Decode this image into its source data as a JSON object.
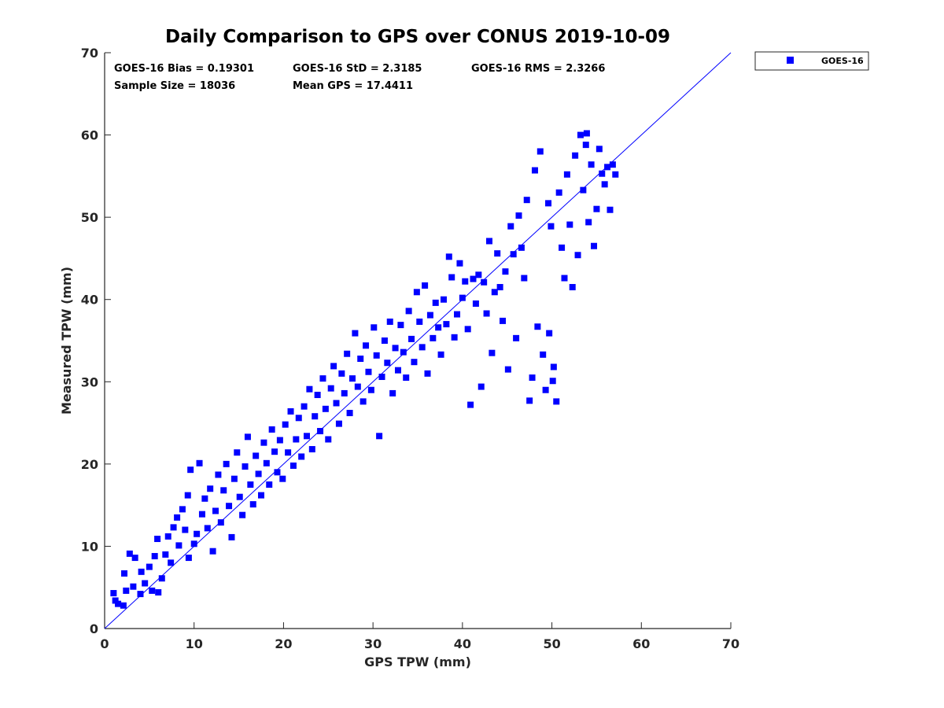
{
  "chart_data": {
    "type": "scatter",
    "title": "Daily Comparison to GPS over CONUS 2019-10-09",
    "xlabel": "GPS TPW (mm)",
    "ylabel": "Measured TPW (mm)",
    "xlim": [
      0,
      70
    ],
    "ylim": [
      0,
      70
    ],
    "xticks": [
      0,
      10,
      20,
      30,
      40,
      50,
      60,
      70
    ],
    "yticks": [
      0,
      10,
      20,
      30,
      40,
      50,
      60,
      70
    ],
    "grid": false,
    "reference_line": {
      "type": "one-to-one",
      "from": [
        0,
        0
      ],
      "to": [
        70,
        70
      ]
    },
    "legend": {
      "position": "outside-top-right",
      "entries": [
        "GOES-16"
      ]
    },
    "stats": {
      "bias": "GOES-16 Bias = 0.19301",
      "std": "GOES-16 StD = 2.3185",
      "rms": "GOES-16 RMS = 2.3266",
      "sample": "Sample Size = 18036",
      "mean": "Mean GPS = 17.4411"
    },
    "series": [
      {
        "name": "GOES-16",
        "color": "#0000ff",
        "marker": "square",
        "points": [
          [
            1.0,
            4.3
          ],
          [
            1.2,
            3.4
          ],
          [
            1.5,
            3.0
          ],
          [
            2.1,
            2.8
          ],
          [
            2.4,
            4.6
          ],
          [
            2.2,
            6.7
          ],
          [
            2.8,
            9.1
          ],
          [
            3.4,
            8.6
          ],
          [
            3.2,
            5.1
          ],
          [
            4.0,
            4.2
          ],
          [
            4.5,
            5.5
          ],
          [
            4.1,
            6.9
          ],
          [
            5.0,
            7.5
          ],
          [
            5.6,
            8.8
          ],
          [
            5.9,
            10.9
          ],
          [
            5.3,
            4.6
          ],
          [
            6.0,
            4.4
          ],
          [
            6.4,
            6.1
          ],
          [
            6.8,
            9.0
          ],
          [
            7.1,
            11.2
          ],
          [
            7.4,
            8.0
          ],
          [
            7.7,
            12.3
          ],
          [
            8.1,
            13.5
          ],
          [
            8.3,
            10.1
          ],
          [
            8.7,
            14.5
          ],
          [
            9.0,
            12.0
          ],
          [
            9.3,
            16.2
          ],
          [
            9.6,
            19.3
          ],
          [
            9.4,
            8.6
          ],
          [
            10.0,
            10.3
          ],
          [
            10.3,
            11.5
          ],
          [
            10.6,
            20.1
          ],
          [
            10.9,
            13.9
          ],
          [
            11.2,
            15.8
          ],
          [
            11.5,
            12.2
          ],
          [
            11.8,
            17.0
          ],
          [
            12.1,
            9.4
          ],
          [
            12.4,
            14.3
          ],
          [
            12.7,
            18.7
          ],
          [
            13.0,
            12.9
          ],
          [
            13.3,
            16.8
          ],
          [
            13.6,
            20.0
          ],
          [
            13.9,
            14.9
          ],
          [
            14.2,
            11.1
          ],
          [
            14.5,
            18.2
          ],
          [
            14.8,
            21.4
          ],
          [
            15.1,
            16.0
          ],
          [
            15.4,
            13.8
          ],
          [
            15.7,
            19.7
          ],
          [
            16.0,
            23.3
          ],
          [
            16.3,
            17.5
          ],
          [
            16.6,
            15.1
          ],
          [
            16.9,
            21.0
          ],
          [
            17.2,
            18.8
          ],
          [
            17.5,
            16.2
          ],
          [
            17.8,
            22.6
          ],
          [
            18.1,
            20.1
          ],
          [
            18.4,
            17.5
          ],
          [
            18.7,
            24.2
          ],
          [
            19.0,
            21.5
          ],
          [
            19.3,
            19.0
          ],
          [
            19.6,
            22.9
          ],
          [
            19.9,
            18.2
          ],
          [
            20.2,
            24.8
          ],
          [
            20.5,
            21.4
          ],
          [
            20.8,
            26.4
          ],
          [
            21.1,
            19.8
          ],
          [
            21.4,
            23.0
          ],
          [
            21.7,
            25.6
          ],
          [
            22.0,
            20.9
          ],
          [
            22.3,
            27.0
          ],
          [
            22.6,
            23.4
          ],
          [
            22.9,
            29.1
          ],
          [
            23.2,
            21.8
          ],
          [
            23.5,
            25.8
          ],
          [
            23.8,
            28.4
          ],
          [
            24.1,
            24.0
          ],
          [
            24.4,
            30.4
          ],
          [
            24.7,
            26.7
          ],
          [
            25.0,
            23.0
          ],
          [
            25.3,
            29.2
          ],
          [
            25.6,
            31.9
          ],
          [
            25.9,
            27.4
          ],
          [
            26.2,
            24.9
          ],
          [
            26.5,
            31.0
          ],
          [
            26.8,
            28.6
          ],
          [
            27.1,
            33.4
          ],
          [
            27.4,
            26.2
          ],
          [
            27.7,
            30.4
          ],
          [
            28.0,
            35.9
          ],
          [
            28.3,
            29.4
          ],
          [
            28.6,
            32.8
          ],
          [
            28.9,
            27.6
          ],
          [
            29.2,
            34.4
          ],
          [
            29.5,
            31.2
          ],
          [
            29.8,
            29.0
          ],
          [
            30.1,
            36.6
          ],
          [
            30.4,
            33.2
          ],
          [
            30.7,
            23.4
          ],
          [
            31.0,
            30.6
          ],
          [
            31.3,
            35.0
          ],
          [
            31.6,
            32.3
          ],
          [
            31.9,
            37.3
          ],
          [
            32.2,
            28.6
          ],
          [
            32.5,
            34.1
          ],
          [
            32.8,
            31.4
          ],
          [
            33.1,
            36.9
          ],
          [
            33.4,
            33.6
          ],
          [
            33.7,
            30.5
          ],
          [
            34.0,
            38.6
          ],
          [
            34.3,
            35.2
          ],
          [
            34.6,
            32.4
          ],
          [
            34.9,
            40.9
          ],
          [
            35.2,
            37.3
          ],
          [
            35.5,
            34.2
          ],
          [
            35.8,
            41.7
          ],
          [
            36.1,
            31.0
          ],
          [
            36.4,
            38.1
          ],
          [
            36.7,
            35.3
          ],
          [
            37.0,
            39.6
          ],
          [
            37.3,
            36.6
          ],
          [
            37.6,
            33.3
          ],
          [
            37.9,
            40.0
          ],
          [
            38.2,
            37.0
          ],
          [
            38.5,
            45.2
          ],
          [
            38.8,
            42.7
          ],
          [
            39.1,
            35.4
          ],
          [
            39.4,
            38.2
          ],
          [
            39.7,
            44.4
          ],
          [
            40.0,
            40.2
          ],
          [
            40.3,
            42.2
          ],
          [
            40.6,
            36.4
          ],
          [
            40.9,
            27.2
          ],
          [
            41.2,
            42.5
          ],
          [
            41.5,
            39.5
          ],
          [
            41.8,
            43.0
          ],
          [
            42.1,
            29.4
          ],
          [
            42.4,
            42.1
          ],
          [
            42.7,
            38.3
          ],
          [
            43.0,
            47.1
          ],
          [
            43.3,
            33.5
          ],
          [
            43.6,
            40.9
          ],
          [
            43.9,
            45.6
          ],
          [
            44.2,
            41.5
          ],
          [
            44.5,
            37.4
          ],
          [
            44.8,
            43.4
          ],
          [
            45.1,
            31.5
          ],
          [
            45.4,
            48.9
          ],
          [
            45.7,
            45.5
          ],
          [
            46.0,
            35.3
          ],
          [
            46.3,
            50.2
          ],
          [
            46.6,
            46.3
          ],
          [
            46.9,
            42.6
          ],
          [
            47.2,
            52.1
          ],
          [
            47.5,
            27.7
          ],
          [
            47.8,
            30.5
          ],
          [
            48.1,
            55.7
          ],
          [
            48.4,
            36.7
          ],
          [
            48.7,
            58.0
          ],
          [
            49.0,
            33.3
          ],
          [
            49.3,
            29.0
          ],
          [
            49.6,
            51.7
          ],
          [
            49.9,
            48.9
          ],
          [
            50.2,
            31.8
          ],
          [
            50.5,
            27.6
          ],
          [
            50.8,
            53.0
          ],
          [
            51.1,
            46.3
          ],
          [
            51.4,
            42.6
          ],
          [
            51.7,
            55.2
          ],
          [
            52.0,
            49.1
          ],
          [
            52.3,
            41.5
          ],
          [
            52.6,
            57.5
          ],
          [
            52.9,
            45.4
          ],
          [
            53.2,
            60.0
          ],
          [
            53.5,
            53.3
          ],
          [
            53.8,
            58.8
          ],
          [
            54.1,
            49.4
          ],
          [
            54.4,
            56.4
          ],
          [
            54.7,
            46.5
          ],
          [
            55.0,
            51.0
          ],
          [
            55.3,
            58.3
          ],
          [
            55.6,
            55.3
          ],
          [
            55.9,
            54.0
          ],
          [
            56.2,
            56.1
          ],
          [
            56.5,
            50.9
          ],
          [
            56.8,
            56.4
          ],
          [
            57.1,
            55.2
          ],
          [
            53.9,
            60.2
          ],
          [
            49.7,
            35.9
          ],
          [
            50.1,
            30.1
          ]
        ]
      }
    ]
  }
}
